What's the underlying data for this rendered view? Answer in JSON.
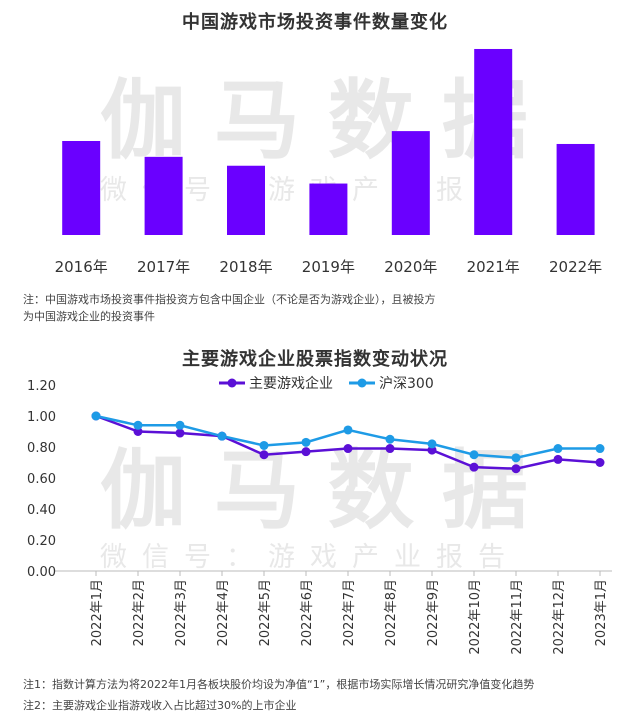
{
  "watermark": {
    "main": "伽马数据",
    "sub": "微信号：游戏产业报告"
  },
  "chart_data": [
    {
      "type": "bar",
      "title": "中国游戏市场投资事件数量变化",
      "categories": [
        "2016年",
        "2017年",
        "2018年",
        "2019年",
        "2020年",
        "2021年",
        "2022年"
      ],
      "values": [
        95,
        79,
        70,
        52,
        105,
        188,
        92
      ],
      "ylim": [
        0,
        190
      ],
      "color": "#6a00ff",
      "grid": false,
      "note": [
        "注：中国游戏市场投资事件指投资方包含中国企业（不论是否为游戏企业），且被投方",
        "为中国游戏企业的投资事件"
      ]
    },
    {
      "type": "line",
      "title": "主要游戏企业股票指数变动状况",
      "x": [
        "2022年1月",
        "2022年2月",
        "2022年3月",
        "2022年4月",
        "2022年5月",
        "2022年6月",
        "2022年7月",
        "2022年8月",
        "2022年9月",
        "2022年10月",
        "2022年11月",
        "2022年12月",
        "2023年1月"
      ],
      "yticks": [
        "1.20",
        "1.00",
        "0.80",
        "0.60",
        "0.40",
        "0.20",
        "0.00"
      ],
      "ylim": [
        0,
        1.2
      ],
      "series": [
        {
          "name": "主要游戏企业",
          "color": "#5b10d6",
          "values": [
            1.0,
            0.9,
            0.89,
            0.87,
            0.75,
            0.77,
            0.79,
            0.79,
            0.78,
            0.67,
            0.66,
            0.72,
            0.7
          ]
        },
        {
          "name": "沪深300",
          "color": "#1e9be6",
          "values": [
            1.0,
            0.94,
            0.94,
            0.87,
            0.81,
            0.83,
            0.91,
            0.85,
            0.82,
            0.75,
            0.73,
            0.79,
            0.79
          ]
        }
      ],
      "legend_position": "top-center",
      "grid": false,
      "notes": [
        "注1：指数计算方法为将2022年1月各板块股价均设为净值“1”，根据市场实际增长情况研究净值变化趋势",
        "注2：主要游戏企业指游戏收入占比超过30%的上市企业"
      ]
    }
  ]
}
